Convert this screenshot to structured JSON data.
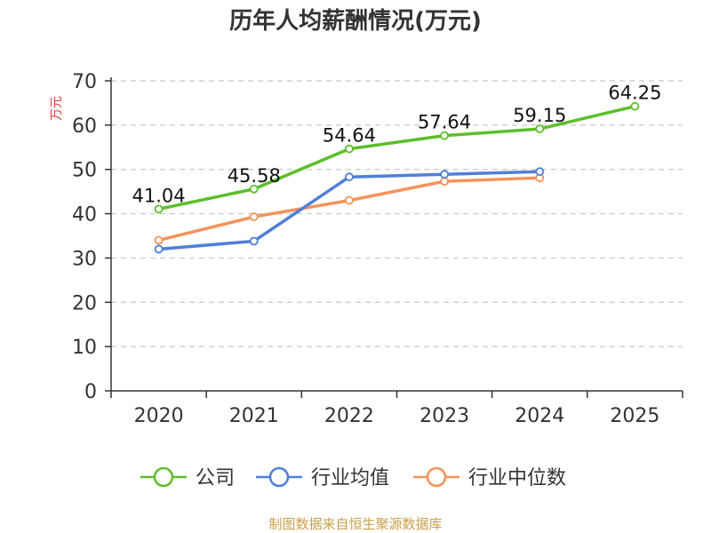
{
  "chart_data": {
    "type": "line",
    "title": "历年人均薪酬情况(万元)",
    "ylabel": "万元",
    "xlabel": "",
    "ylim": [
      0,
      70
    ],
    "yticks": [
      0,
      10,
      20,
      30,
      40,
      50,
      60,
      70
    ],
    "categories": [
      "2020",
      "2021",
      "2022",
      "2023",
      "2024",
      "2025"
    ],
    "series": [
      {
        "name": "公司",
        "color": "#5cbf2a",
        "values": [
          41.04,
          45.58,
          54.64,
          57.64,
          59.15,
          64.25
        ],
        "labels": [
          "41.04",
          "45.58",
          "54.64",
          "57.64",
          "59.15",
          "64.25"
        ]
      },
      {
        "name": "行业均值",
        "color": "#4e7fd9",
        "values": [
          32.0,
          33.8,
          48.3,
          48.9,
          49.5,
          null
        ]
      },
      {
        "name": "行业中位数",
        "color": "#f5925a",
        "values": [
          34.0,
          39.3,
          43.0,
          47.3,
          48.1,
          null
        ]
      }
    ],
    "legend_position": "bottom",
    "grid": true
  },
  "source": "制图数据来自恒生聚源数据库"
}
